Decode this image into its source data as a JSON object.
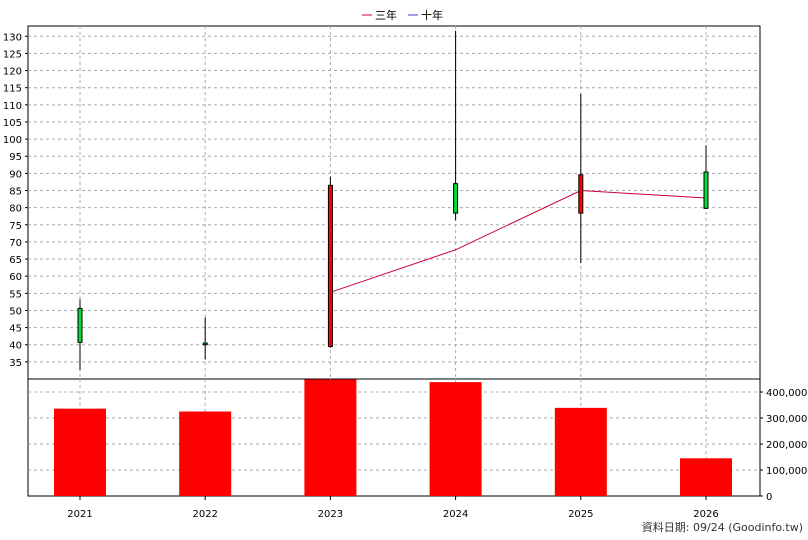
{
  "chart_data": {
    "type": "candlestick+bar",
    "categories": [
      "2021",
      "2022",
      "2023",
      "2024",
      "2025",
      "2026"
    ],
    "legend": [
      {
        "name": "三年",
        "color": "#cc0033"
      },
      {
        "name": "十年",
        "color": "#6633cc"
      }
    ],
    "price_panel": {
      "ylim": [
        30,
        133
      ],
      "yticks": [
        "35",
        "40",
        "45",
        "50",
        "55",
        "60",
        "65",
        "70",
        "75",
        "80",
        "85",
        "90",
        "95",
        "100",
        "105",
        "110",
        "115",
        "120",
        "125",
        "130"
      ],
      "grid": true,
      "candles": [
        {
          "x": "2021",
          "open": 40.7,
          "high": 53.3,
          "low": 32.5,
          "close": 50.6,
          "color": "#00dd33"
        },
        {
          "x": "2022",
          "open": 40.5,
          "high": 48.0,
          "low": 35.7,
          "close": 40.0,
          "color": "#00dd33"
        },
        {
          "x": "2023",
          "open": 86.5,
          "high": 89.0,
          "low": 39.1,
          "close": 39.5,
          "color": "#ff0000"
        },
        {
          "x": "2024",
          "open": 78.4,
          "high": 131.6,
          "low": 76.3,
          "close": 87.0,
          "color": "#00dd33"
        },
        {
          "x": "2025",
          "open": 89.6,
          "high": 113.2,
          "low": 63.9,
          "close": 78.4,
          "color": "#ff0000"
        },
        {
          "x": "2026",
          "open": 79.8,
          "high": 98.2,
          "low": 79.6,
          "close": 90.4,
          "color": "#00dd33"
        }
      ],
      "line_series": [
        {
          "name": "三年",
          "color": "#cc0033",
          "points": [
            [
              "2023",
              55.3
            ],
            [
              "2024",
              67.7
            ],
            [
              "2025",
              85.0
            ],
            [
              "2026",
              82.8
            ]
          ]
        }
      ]
    },
    "volume_panel": {
      "ylim": [
        0,
        450000
      ],
      "yticks": [
        "0",
        "100,000",
        "200,000",
        "300,000",
        "400,000"
      ],
      "ytick_values": [
        0,
        100000,
        200000,
        300000,
        400000
      ],
      "bar_color": "#ff0000",
      "values": [
        336000,
        325000,
        448000,
        438000,
        339000,
        145000
      ]
    }
  },
  "footer": "資料日期: 09/24  (Goodinfo.tw)"
}
